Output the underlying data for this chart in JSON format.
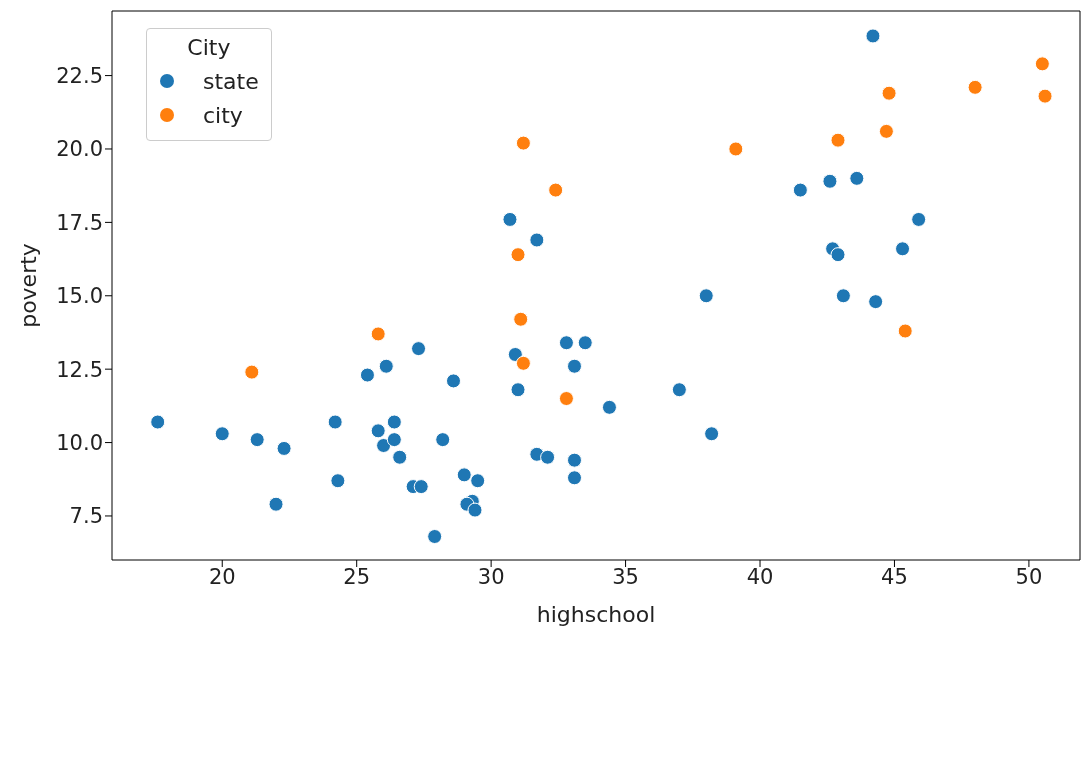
{
  "chart_data": {
    "type": "scatter",
    "xlabel": "highschool",
    "ylabel": "poverty",
    "legend_title": "City",
    "xlim": [
      15.9,
      51.9
    ],
    "ylim": [
      6.0,
      24.7
    ],
    "xticks": [
      20,
      25,
      30,
      35,
      40,
      45,
      50
    ],
    "yticks": [
      7.5,
      {
        "value": 10,
        "label": "10.0"
      },
      12.5,
      {
        "value": 15,
        "label": "15.0"
      },
      17.5,
      {
        "value": 20,
        "label": "20.0"
      },
      22.5
    ],
    "grid": false,
    "legend": "top left",
    "marker": "circle",
    "series": [
      {
        "name": "state",
        "color": "#1f77b4",
        "x": [
          44.2,
          41.5,
          42.6,
          43.6,
          45.9,
          42.7,
          42.9,
          45.3,
          43.1,
          44.3,
          38.0,
          30.7,
          31.7,
          30.9,
          32.8,
          33.5,
          33.1,
          31.0,
          37.0,
          34.4,
          38.2,
          28.6,
          27.3,
          26.1,
          25.4,
          17.6,
          20.0,
          21.3,
          22.3,
          24.2,
          25.8,
          26.4,
          26.0,
          26.4,
          26.6,
          28.2,
          24.3,
          22.0,
          27.1,
          27.4,
          29.0,
          29.5,
          29.3,
          29.1,
          29.4,
          27.9,
          31.7,
          32.1,
          33.1,
          33.1
        ],
        "values": [
          23.85,
          18.6,
          18.9,
          19.0,
          17.6,
          16.6,
          16.4,
          16.6,
          15.0,
          14.8,
          15.0,
          17.6,
          16.9,
          13.0,
          13.4,
          13.4,
          12.6,
          11.8,
          11.8,
          11.2,
          10.3,
          12.1,
          13.2,
          12.6,
          12.3,
          10.7,
          10.3,
          10.1,
          9.8,
          10.7,
          10.4,
          10.7,
          9.9,
          10.1,
          9.5,
          10.1,
          8.7,
          7.9,
          8.5,
          8.5,
          8.9,
          8.7,
          8.0,
          7.9,
          7.7,
          6.8,
          9.6,
          9.5,
          9.4,
          8.8
        ]
      },
      {
        "name": "city",
        "color": "#ff7f0e",
        "x": [
          21.1,
          25.8,
          31.2,
          32.4,
          31.0,
          31.1,
          31.2,
          32.8,
          39.1,
          42.9,
          44.8,
          44.7,
          45.4,
          48.0,
          50.5,
          50.6
        ],
        "values": [
          12.4,
          13.7,
          20.2,
          18.6,
          16.4,
          14.2,
          12.7,
          11.5,
          20.0,
          20.3,
          21.9,
          20.6,
          13.8,
          22.1,
          22.9,
          21.8
        ]
      }
    ]
  }
}
